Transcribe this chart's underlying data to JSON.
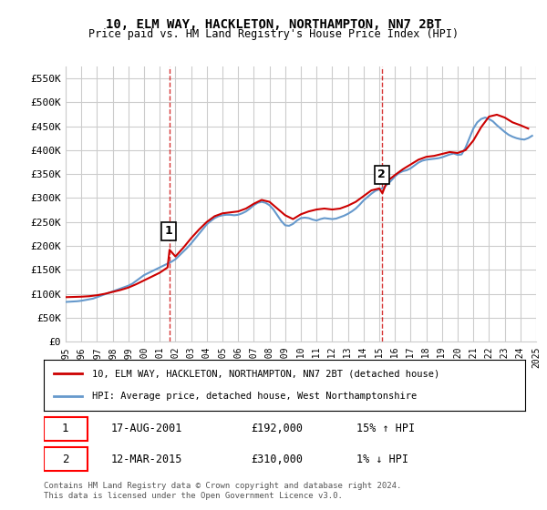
{
  "title": "10, ELM WAY, HACKLETON, NORTHAMPTON, NN7 2BT",
  "subtitle": "Price paid vs. HM Land Registry's House Price Index (HPI)",
  "ylim": [
    0,
    575000
  ],
  "yticks": [
    0,
    50000,
    100000,
    150000,
    200000,
    250000,
    300000,
    350000,
    400000,
    450000,
    500000,
    550000
  ],
  "ytick_labels": [
    "£0",
    "£50K",
    "£100K",
    "£150K",
    "£200K",
    "£250K",
    "£300K",
    "£350K",
    "£400K",
    "£450K",
    "£500K",
    "£550K"
  ],
  "xmin_year": 1995,
  "xmax_year": 2025,
  "xtick_years": [
    1995,
    1996,
    1997,
    1998,
    1999,
    2000,
    2001,
    2002,
    2003,
    2004,
    2005,
    2006,
    2007,
    2008,
    2009,
    2010,
    2011,
    2012,
    2013,
    2014,
    2015,
    2016,
    2017,
    2018,
    2019,
    2020,
    2021,
    2022,
    2023,
    2024,
    2025
  ],
  "legend_line1": "10, ELM WAY, HACKLETON, NORTHAMPTON, NN7 2BT (detached house)",
  "legend_line2": "HPI: Average price, detached house, West Northamptonshire",
  "transaction1_label": "1",
  "transaction1_date": "17-AUG-2001",
  "transaction1_price": "£192,000",
  "transaction1_hpi": "15% ↑ HPI",
  "transaction1_year": 2001.625,
  "transaction1_value": 192000,
  "transaction2_label": "2",
  "transaction2_date": "12-MAR-2015",
  "transaction2_price": "£310,000",
  "transaction2_hpi": "1% ↓ HPI",
  "transaction2_year": 2015.2,
  "transaction2_value": 310000,
  "red_color": "#cc0000",
  "blue_color": "#6699cc",
  "dashed_color": "#cc0000",
  "grid_color": "#cccccc",
  "bg_color": "#ffffff",
  "footnote": "Contains HM Land Registry data © Crown copyright and database right 2024.\nThis data is licensed under the Open Government Licence v3.0.",
  "hpi_data_years": [
    1995.0,
    1995.25,
    1995.5,
    1995.75,
    1996.0,
    1996.25,
    1996.5,
    1996.75,
    1997.0,
    1997.25,
    1997.5,
    1997.75,
    1998.0,
    1998.25,
    1998.5,
    1998.75,
    1999.0,
    1999.25,
    1999.5,
    1999.75,
    2000.0,
    2000.25,
    2000.5,
    2000.75,
    2001.0,
    2001.25,
    2001.5,
    2001.75,
    2002.0,
    2002.25,
    2002.5,
    2002.75,
    2003.0,
    2003.25,
    2003.5,
    2003.75,
    2004.0,
    2004.25,
    2004.5,
    2004.75,
    2005.0,
    2005.25,
    2005.5,
    2005.75,
    2006.0,
    2006.25,
    2006.5,
    2006.75,
    2007.0,
    2007.25,
    2007.5,
    2007.75,
    2008.0,
    2008.25,
    2008.5,
    2008.75,
    2009.0,
    2009.25,
    2009.5,
    2009.75,
    2010.0,
    2010.25,
    2010.5,
    2010.75,
    2011.0,
    2011.25,
    2011.5,
    2011.75,
    2012.0,
    2012.25,
    2012.5,
    2012.75,
    2013.0,
    2013.25,
    2013.5,
    2013.75,
    2014.0,
    2014.25,
    2014.5,
    2014.75,
    2015.0,
    2015.25,
    2015.5,
    2015.75,
    2016.0,
    2016.25,
    2016.5,
    2016.75,
    2017.0,
    2017.25,
    2017.5,
    2017.75,
    2018.0,
    2018.25,
    2018.5,
    2018.75,
    2019.0,
    2019.25,
    2019.5,
    2019.75,
    2020.0,
    2020.25,
    2020.5,
    2020.75,
    2021.0,
    2021.25,
    2021.5,
    2021.75,
    2022.0,
    2022.25,
    2022.5,
    2022.75,
    2023.0,
    2023.25,
    2023.5,
    2023.75,
    2024.0,
    2024.25,
    2024.5,
    2024.75
  ],
  "hpi_values": [
    83000,
    83500,
    84000,
    84500,
    85500,
    87000,
    88500,
    90000,
    93000,
    96000,
    99000,
    102000,
    105000,
    108000,
    111000,
    114000,
    117000,
    121000,
    127000,
    133000,
    139000,
    143000,
    147000,
    151000,
    155000,
    159000,
    163000,
    167000,
    172000,
    180000,
    188000,
    196000,
    205000,
    215000,
    225000,
    235000,
    245000,
    252000,
    258000,
    262000,
    264000,
    265000,
    265000,
    264000,
    265000,
    268000,
    272000,
    278000,
    285000,
    290000,
    292000,
    290000,
    285000,
    276000,
    264000,
    252000,
    243000,
    242000,
    246000,
    253000,
    258000,
    259000,
    258000,
    255000,
    253000,
    256000,
    258000,
    257000,
    256000,
    257000,
    260000,
    263000,
    267000,
    272000,
    278000,
    286000,
    295000,
    302000,
    309000,
    315000,
    318000,
    321000,
    328000,
    336000,
    345000,
    352000,
    356000,
    358000,
    362000,
    368000,
    374000,
    378000,
    380000,
    381000,
    382000,
    383000,
    385000,
    388000,
    391000,
    393000,
    390000,
    391000,
    405000,
    425000,
    445000,
    458000,
    465000,
    468000,
    465000,
    460000,
    452000,
    445000,
    438000,
    432000,
    428000,
    425000,
    423000,
    422000,
    425000,
    430000
  ],
  "price_paid_years": [
    1995.0,
    1995.5,
    1996.0,
    1996.5,
    1997.0,
    1997.5,
    1998.0,
    1998.5,
    1999.0,
    1999.5,
    2000.0,
    2000.5,
    2001.0,
    2001.5,
    2001.625,
    2002.0,
    2002.5,
    2003.0,
    2003.5,
    2004.0,
    2004.5,
    2005.0,
    2005.5,
    2006.0,
    2006.5,
    2007.0,
    2007.5,
    2008.0,
    2008.5,
    2009.0,
    2009.5,
    2010.0,
    2010.5,
    2011.0,
    2011.5,
    2012.0,
    2012.5,
    2013.0,
    2013.5,
    2014.0,
    2014.5,
    2015.0,
    2015.2,
    2015.5,
    2016.0,
    2016.5,
    2017.0,
    2017.5,
    2018.0,
    2018.5,
    2019.0,
    2019.5,
    2020.0,
    2020.5,
    2021.0,
    2021.5,
    2022.0,
    2022.5,
    2023.0,
    2023.5,
    2024.0,
    2024.5
  ],
  "price_paid_values": [
    93000,
    93500,
    94000,
    95000,
    97000,
    100000,
    104000,
    108000,
    113000,
    120000,
    128000,
    136000,
    144000,
    155000,
    192000,
    178000,
    196000,
    216000,
    234000,
    250000,
    262000,
    268000,
    270000,
    272000,
    278000,
    288000,
    296000,
    292000,
    278000,
    264000,
    256000,
    266000,
    272000,
    276000,
    278000,
    276000,
    278000,
    284000,
    292000,
    304000,
    316000,
    320000,
    310000,
    335000,
    348000,
    360000,
    370000,
    380000,
    386000,
    388000,
    392000,
    396000,
    394000,
    400000,
    420000,
    448000,
    470000,
    474000,
    468000,
    458000,
    452000,
    445000
  ]
}
